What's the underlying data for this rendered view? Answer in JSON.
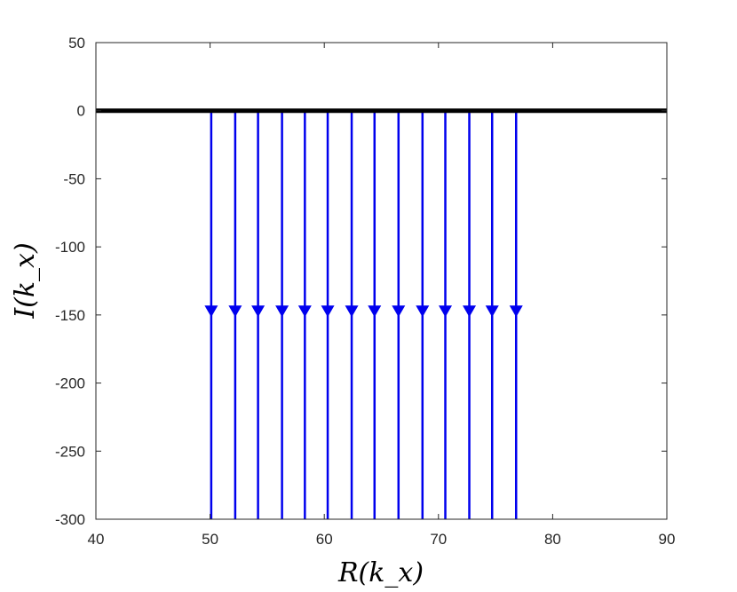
{
  "chart_data": {
    "type": "line",
    "title": "",
    "xlabel": "R(k_x)",
    "ylabel": "I(k_x)",
    "xlim": [
      40,
      90
    ],
    "ylim": [
      -300,
      50
    ],
    "x_ticks": [
      40,
      50,
      60,
      70,
      80,
      90
    ],
    "y_ticks": [
      50,
      0,
      -50,
      -100,
      -150,
      -200,
      -250,
      -300
    ],
    "grid": false,
    "legend": "none",
    "colors": {
      "real_axis": "#000000",
      "contours": "#0000ee"
    },
    "series": [
      {
        "x": [
          40,
          90
        ],
        "y": [
          0,
          0
        ]
      },
      {
        "type": "vertical-contours",
        "x": [
          50.1,
          52.2,
          54.2,
          56.3,
          58.3,
          60.3,
          62.4,
          64.4,
          66.5,
          68.6,
          70.6,
          72.7,
          74.7,
          76.8
        ],
        "y_start": 0,
        "y_end": -300,
        "arrow_direction": "down",
        "arrow_y": -147
      }
    ]
  }
}
